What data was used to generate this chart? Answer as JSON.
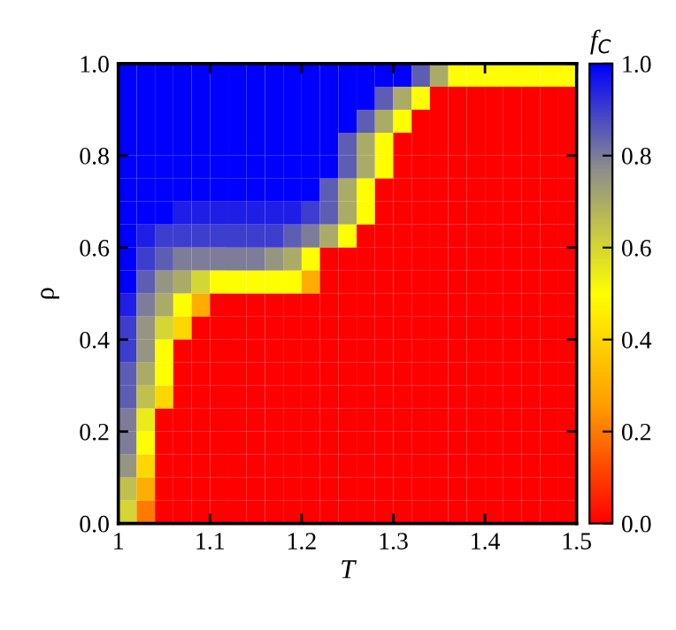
{
  "chart_data": {
    "type": "heatmap",
    "xlabel": "T",
    "ylabel": "ρ",
    "clabel": "f$_{C}$",
    "xlim": [
      1,
      1.5
    ],
    "xticks": [
      {
        "value": 1,
        "label": "1"
      },
      1.1,
      1.2,
      1.3,
      1.4,
      1.5
    ],
    "ylim": [
      0,
      1
    ],
    "yticks": [
      {
        "value": 0,
        "label": "0.0"
      },
      0.2,
      0.4,
      0.6,
      0.8,
      {
        "value": 1,
        "label": "1.0"
      }
    ],
    "clim": [
      0,
      1
    ],
    "cticks": [
      {
        "value": 0,
        "label": "0.0"
      },
      0.2,
      0.4,
      0.6,
      0.8,
      {
        "value": 1,
        "label": "1.0"
      }
    ],
    "cells": [
      [
        1,
        1,
        1,
        1,
        1,
        1,
        1,
        1,
        1,
        1,
        1,
        1,
        1,
        1,
        1,
        1,
        0.85,
        0.7,
        0.5,
        0.5,
        0.5,
        0.5,
        0.5,
        0.5,
        0.5
      ],
      [
        1,
        1,
        1,
        1,
        1,
        1,
        1,
        1,
        1,
        1,
        1,
        1,
        1,
        1,
        0.85,
        0.7,
        0.5,
        0,
        0,
        0,
        0,
        0,
        0,
        0,
        0
      ],
      [
        1,
        1,
        1,
        1,
        1,
        1,
        1,
        1,
        1,
        1,
        1,
        1,
        1,
        0.85,
        0.7,
        0.5,
        0,
        0,
        0,
        0,
        0,
        0,
        0,
        0,
        0
      ],
      [
        1,
        1,
        1,
        1,
        1,
        1,
        1,
        1,
        1,
        1,
        1,
        1,
        0.85,
        0.7,
        0.5,
        0,
        0,
        0,
        0,
        0,
        0,
        0,
        0,
        0,
        0
      ],
      [
        1,
        1,
        1,
        1,
        1,
        1,
        1,
        1,
        1,
        1,
        1,
        1,
        0.85,
        0.7,
        0.5,
        0,
        0,
        0,
        0,
        0,
        0,
        0,
        0,
        0,
        0
      ],
      [
        1,
        1,
        1,
        1,
        1,
        1,
        1,
        1,
        1,
        1,
        1,
        0.85,
        0.7,
        0.5,
        0,
        0,
        0,
        0,
        0,
        0,
        0,
        0,
        0,
        0,
        0
      ],
      [
        1,
        1,
        1,
        0.95,
        0.95,
        0.95,
        0.95,
        0.95,
        0.95,
        0.95,
        0.9,
        0.85,
        0.7,
        0.5,
        0,
        0,
        0,
        0,
        0,
        0,
        0,
        0,
        0,
        0,
        0
      ],
      [
        1,
        0.95,
        0.9,
        0.9,
        0.9,
        0.9,
        0.9,
        0.9,
        0.9,
        0.85,
        0.8,
        0.7,
        0.5,
        0,
        0,
        0,
        0,
        0,
        0,
        0,
        0,
        0,
        0,
        0,
        0
      ],
      [
        1,
        0.9,
        0.85,
        0.8,
        0.8,
        0.8,
        0.8,
        0.8,
        0.75,
        0.7,
        0.5,
        0,
        0,
        0,
        0,
        0,
        0,
        0,
        0,
        0,
        0,
        0,
        0,
        0,
        0
      ],
      [
        1,
        0.85,
        0.75,
        0.7,
        0.6,
        0.5,
        0.5,
        0.5,
        0.5,
        0.5,
        0.3,
        0,
        0,
        0,
        0,
        0,
        0,
        0,
        0,
        0,
        0,
        0,
        0,
        0,
        0
      ],
      [
        0.95,
        0.8,
        0.7,
        0.5,
        0.3,
        0,
        0,
        0,
        0,
        0,
        0,
        0,
        0,
        0,
        0,
        0,
        0,
        0,
        0,
        0,
        0,
        0,
        0,
        0,
        0
      ],
      [
        0.9,
        0.75,
        0.6,
        0.4,
        0,
        0,
        0,
        0,
        0,
        0,
        0,
        0,
        0,
        0,
        0,
        0,
        0,
        0,
        0,
        0,
        0,
        0,
        0,
        0,
        0
      ],
      [
        0.9,
        0.75,
        0.5,
        0,
        0,
        0,
        0,
        0,
        0,
        0,
        0,
        0,
        0,
        0,
        0,
        0,
        0,
        0,
        0,
        0,
        0,
        0,
        0,
        0,
        0
      ],
      [
        0.85,
        0.7,
        0.5,
        0,
        0,
        0,
        0,
        0,
        0,
        0,
        0,
        0,
        0,
        0,
        0,
        0,
        0,
        0,
        0,
        0,
        0,
        0,
        0,
        0,
        0
      ],
      [
        0.85,
        0.65,
        0.4,
        0,
        0,
        0,
        0,
        0,
        0,
        0,
        0,
        0,
        0,
        0,
        0,
        0,
        0,
        0,
        0,
        0,
        0,
        0,
        0,
        0,
        0
      ],
      [
        0.8,
        0.55,
        0,
        0,
        0,
        0,
        0,
        0,
        0,
        0,
        0,
        0,
        0,
        0,
        0,
        0,
        0,
        0,
        0,
        0,
        0,
        0,
        0,
        0,
        0
      ],
      [
        0.8,
        0.5,
        0,
        0,
        0,
        0,
        0,
        0,
        0,
        0,
        0,
        0,
        0,
        0,
        0,
        0,
        0,
        0,
        0,
        0,
        0,
        0,
        0,
        0,
        0
      ],
      [
        0.75,
        0.4,
        0,
        0,
        0,
        0,
        0,
        0,
        0,
        0,
        0,
        0,
        0,
        0,
        0,
        0,
        0,
        0,
        0,
        0,
        0,
        0,
        0,
        0,
        0
      ],
      [
        0.65,
        0.3,
        0,
        0,
        0,
        0,
        0,
        0,
        0,
        0,
        0,
        0,
        0,
        0,
        0,
        0,
        0,
        0,
        0,
        0,
        0,
        0,
        0,
        0,
        0
      ],
      [
        0.6,
        0.2,
        0,
        0,
        0,
        0,
        0,
        0,
        0,
        0,
        0,
        0,
        0,
        0,
        0,
        0,
        0,
        0,
        0,
        0,
        0,
        0,
        0,
        0,
        0
      ]
    ]
  }
}
